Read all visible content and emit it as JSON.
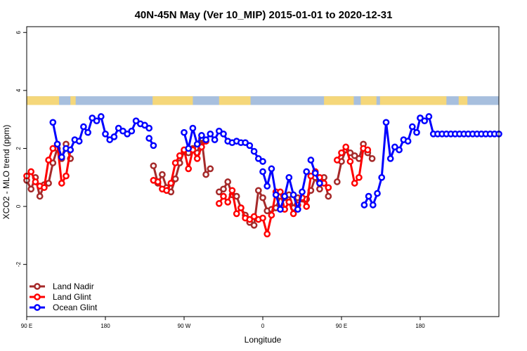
{
  "chart_data": {
    "type": "line",
    "title": "40N-45N May (Ver 10_MIP)   2015-01-01 to 2020-12-31",
    "xlabel": "Longitude",
    "ylabel": "XCO2 - MLO trend (ppm)",
    "xlim": [
      -90,
      180
    ],
    "ylim": [
      -3.8,
      6.2
    ],
    "x_ticks": [
      {
        "value": -90,
        "label": "90 E"
      },
      {
        "value": -45,
        "label": "180"
      },
      {
        "value": 0,
        "label": "90 W"
      },
      {
        "value": 45,
        "label": "0"
      },
      {
        "value": 90,
        "label": "90 E"
      },
      {
        "value": 135,
        "label": "180"
      }
    ],
    "y_ticks": [
      -2,
      0,
      2,
      4,
      6
    ],
    "grid": false,
    "legend_position": "bottom-left",
    "land_ocean_band": {
      "y_range": [
        3.5,
        3.8
      ],
      "land_color": "#F5D77A",
      "ocean_color": "#A7BFDE",
      "land_segments": [
        [
          -90,
          -71.5
        ],
        [
          -65,
          -62
        ],
        [
          -18,
          5
        ],
        [
          20,
          38
        ],
        [
          80,
          97
        ],
        [
          101,
          110
        ],
        [
          112,
          150
        ],
        [
          157,
          162
        ]
      ]
    },
    "series": [
      {
        "name": "Land Nadir",
        "color": "#A52A2A",
        "segments": [
          {
            "x": [
              -90,
              -87.5,
              -85,
              -82.5,
              -80,
              -77.5,
              -75,
              -72.5,
              -70,
              -67.5,
              -65
            ],
            "y": [
              0.9,
              0.6,
              1.0,
              0.35,
              0.75,
              0.8,
              1.5,
              2.0,
              1.65,
              2.15,
              1.65
            ]
          },
          {
            "x": [
              -17.5,
              -15,
              -12.5,
              -10,
              -7.5,
              -5,
              -2.5,
              0,
              2.5,
              5,
              7.5,
              10,
              12.5,
              15
            ],
            "y": [
              1.4,
              0.8,
              1.1,
              0.65,
              0.5,
              0.95,
              1.5,
              1.9,
              1.85,
              2.0,
              1.85,
              2.35,
              1.1,
              1.3
            ]
          },
          {
            "x": [
              20,
              22.5,
              25,
              27.5,
              30,
              32.5,
              35,
              37.5,
              40,
              42.5,
              45,
              47.5,
              50,
              52.5,
              55,
              57.5,
              60,
              62.5,
              65,
              67.5,
              70,
              72.5,
              75,
              77.5,
              80,
              82.5
            ],
            "y": [
              0.5,
              0.6,
              0.85,
              0.4,
              0.35,
              -0.05,
              -0.3,
              -0.55,
              -0.65,
              0.55,
              0.3,
              -0.15,
              -0.1,
              -0.05,
              0.35,
              0.3,
              0.4,
              -0.05,
              0.3,
              0.25,
              0.25,
              0.55,
              1.0,
              0.6,
              1.0,
              0.35
            ]
          },
          {
            "x": [
              87.5,
              90,
              92.5,
              95,
              97.5,
              100,
              102.5,
              105,
              107.5
            ],
            "y": [
              0.85,
              1.55,
              1.95,
              1.85,
              1.75,
              1.65,
              2.15,
              1.85,
              1.65
            ]
          }
        ]
      },
      {
        "name": "Land Glint",
        "color": "#FF0000",
        "segments": [
          {
            "x": [
              -90,
              -87.5,
              -85,
              -82.5,
              -80,
              -77.5,
              -75,
              -72.5,
              -70,
              -67.5,
              -65
            ],
            "y": [
              1.05,
              1.2,
              0.85,
              0.7,
              0.65,
              1.6,
              2.0,
              2.15,
              0.8,
              1.05,
              1.95
            ]
          },
          {
            "x": [
              -17.5,
              -15,
              -12.5,
              -10,
              -7.5,
              -5,
              -2.5,
              0,
              2.5,
              5,
              7.5,
              10,
              12.5
            ],
            "y": [
              0.9,
              0.85,
              0.6,
              0.55,
              0.8,
              1.5,
              1.75,
              1.95,
              1.3,
              1.95,
              1.65,
              2.05,
              2.25
            ]
          },
          {
            "x": [
              20,
              22.5,
              25,
              27.5,
              30,
              32.5,
              35,
              37.5,
              40,
              42.5,
              45,
              47.5,
              50,
              52.5,
              55,
              57.5,
              60,
              62.5,
              65,
              67.5,
              70,
              72.5,
              75,
              77.5,
              80,
              82.5
            ],
            "y": [
              0.1,
              0.35,
              0.15,
              0.55,
              -0.25,
              -0.05,
              -0.4,
              -0.45,
              -0.35,
              -0.45,
              -0.4,
              -0.95,
              -0.3,
              0.5,
              0.5,
              -0.1,
              0.15,
              -0.25,
              0.05,
              0.3,
              0.0,
              1.05,
              1.2,
              1.0,
              0.8,
              0.65
            ]
          },
          {
            "x": [
              87.5,
              90,
              92.5,
              95,
              97.5,
              100,
              102.5,
              105
            ],
            "y": [
              1.6,
              1.85,
              2.05,
              1.55,
              0.8,
              1.0,
              2.0,
              1.95
            ]
          }
        ]
      },
      {
        "name": "Ocean Glint",
        "color": "#0000FF",
        "segments": [
          {
            "x": [
              -75,
              -72.5,
              -70,
              -67.5,
              -65,
              -62.5,
              -60,
              -57.5,
              -55,
              -52.5,
              -50,
              -47.5,
              -45,
              -42.5,
              -40,
              -37.5,
              -35,
              -32.5,
              -30,
              -27.5,
              -25,
              -22.5,
              -20
            ],
            "y": [
              2.9,
              2.15,
              1.7,
              2.0,
              1.95,
              2.3,
              2.25,
              2.75,
              2.55,
              3.05,
              2.95,
              3.1,
              2.5,
              2.3,
              2.4,
              2.7,
              2.6,
              2.5,
              2.6,
              2.95,
              2.85,
              2.8,
              2.7
            ]
          },
          {
            "x": [
              -20,
              -17.5
            ],
            "y": [
              2.35,
              2.1
            ]
          },
          {
            "x": [
              0,
              2.5,
              5,
              7.5,
              10,
              12.5,
              15,
              17.5,
              20,
              22.5,
              25,
              27.5,
              30,
              32.5,
              35,
              37.5,
              40,
              42.5,
              45
            ],
            "y": [
              2.55,
              2.0,
              2.7,
              2.15,
              2.45,
              2.3,
              2.5,
              2.3,
              2.6,
              2.5,
              2.25,
              2.2,
              2.25,
              2.2,
              2.2,
              2.1,
              1.9,
              1.65,
              1.55
            ]
          },
          {
            "x": [
              45,
              47.5,
              50,
              52.5,
              55,
              57.5,
              60,
              62.5,
              65,
              67.5,
              70
            ],
            "y": [
              1.2,
              0.7,
              1.3,
              0.4,
              -0.1,
              0.35,
              1.0,
              0.4,
              -0.1,
              0.5,
              1.2
            ]
          },
          {
            "x": [
              72.5,
              75,
              77.5
            ],
            "y": [
              1.6,
              1.15,
              0.8
            ]
          },
          {
            "x": [
              103,
              105.5,
              108,
              110.5,
              113,
              115.5,
              118,
              120.5,
              123,
              125.5,
              128,
              130.5,
              133,
              135
            ],
            "y": [
              0.05,
              0.35,
              0.05,
              0.45,
              1.0,
              2.9,
              1.65,
              2.05,
              1.95,
              2.3,
              2.25,
              2.75,
              2.55,
              3.05
            ]
          },
          {
            "x": [
              135,
              137.5,
              140,
              142.5,
              145,
              147.5,
              150,
              152.5,
              155,
              157.5,
              160,
              162.5,
              165,
              167.5,
              170,
              172.5,
              175,
              177.5,
              180
            ],
            "y": [
              3.05,
              2.95,
              3.1,
              2.5,
              2.5,
              2.5,
              2.5,
              2.5,
              2.5,
              2.5,
              2.5,
              2.5,
              2.5,
              2.5,
              2.5,
              2.5,
              2.5,
              2.5,
              2.5
            ]
          }
        ]
      }
    ]
  }
}
